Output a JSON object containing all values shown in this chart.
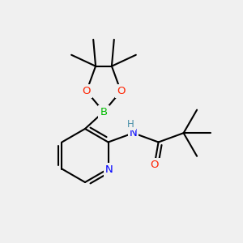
{
  "bg_color": "#f0f0f0",
  "atom_colors": {
    "C": "#000000",
    "N": "#0000ff",
    "O": "#ff2200",
    "B": "#00bb00",
    "H": "#4a8fa8"
  },
  "figsize": [
    3.0,
    3.0
  ],
  "dpi": 100,
  "lw": 1.5,
  "font_size_atom": 9.5
}
